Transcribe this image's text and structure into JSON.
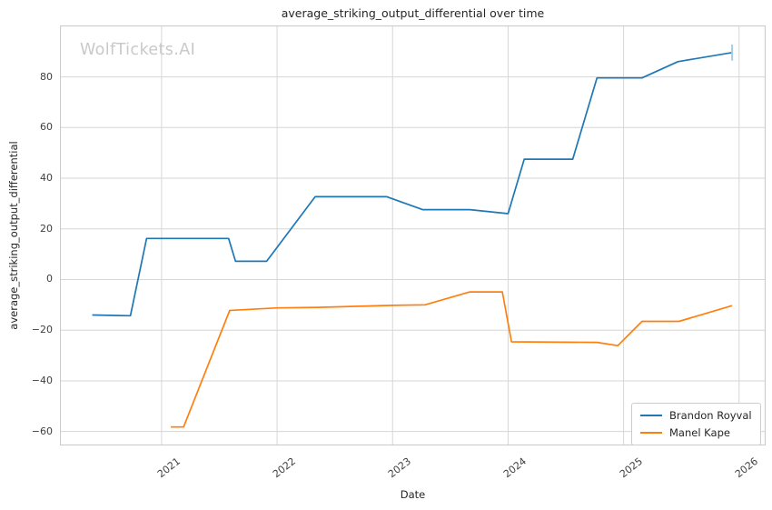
{
  "watermark": "WolfTickets.AI",
  "chart_data": {
    "type": "line",
    "title": "average_striking_output_differential over time",
    "xlabel": "Date",
    "ylabel": "average_striking_output_differential",
    "xlim": [
      2020.12,
      2026.23
    ],
    "ylim": [
      -65.5,
      100.3
    ],
    "grid": true,
    "legend_position": "lower right",
    "xticks": [
      {
        "value": 2021,
        "label": "2021"
      },
      {
        "value": 2022,
        "label": "2022"
      },
      {
        "value": 2023,
        "label": "2023"
      },
      {
        "value": 2024,
        "label": "2024"
      },
      {
        "value": 2025,
        "label": "2025"
      },
      {
        "value": 2026,
        "label": "2026"
      }
    ],
    "yticks": [
      {
        "value": 80,
        "label": "80"
      },
      {
        "value": 60,
        "label": "60"
      },
      {
        "value": 40,
        "label": "40"
      },
      {
        "value": 20,
        "label": "20"
      },
      {
        "value": 0,
        "label": "0"
      },
      {
        "value": -20,
        "label": "−20"
      },
      {
        "value": -40,
        "label": "−40"
      },
      {
        "value": -60,
        "label": "−60"
      }
    ],
    "series": [
      {
        "name": "Brandon Royval",
        "color": "#1f77b4",
        "points": [
          [
            2020.4,
            -14.0
          ],
          [
            2020.73,
            -14.3
          ],
          [
            2020.87,
            16.2
          ],
          [
            2021.58,
            16.2
          ],
          [
            2021.64,
            7.2
          ],
          [
            2021.91,
            7.2
          ],
          [
            2022.33,
            32.7
          ],
          [
            2022.95,
            32.7
          ],
          [
            2023.26,
            27.6
          ],
          [
            2023.67,
            27.6
          ],
          [
            2024.0,
            26.0
          ],
          [
            2024.14,
            47.5
          ],
          [
            2024.56,
            47.5
          ],
          [
            2024.77,
            79.6
          ],
          [
            2025.16,
            79.6
          ],
          [
            2025.47,
            86.0
          ],
          [
            2025.94,
            89.6
          ]
        ],
        "end_marker": {
          "x": 2025.94,
          "y1": 86.4,
          "y2": 92.8,
          "color": "#a9cce3"
        }
      },
      {
        "name": "Manel Kape",
        "color": "#ff7f0e",
        "points": [
          [
            2021.08,
            -58.2
          ],
          [
            2021.19,
            -58.2
          ],
          [
            2021.59,
            -12.2
          ],
          [
            2022.0,
            -11.2
          ],
          [
            2022.35,
            -11.0
          ],
          [
            2023.0,
            -10.2
          ],
          [
            2023.28,
            -10.0
          ],
          [
            2023.67,
            -4.9
          ],
          [
            2023.95,
            -4.9
          ],
          [
            2024.03,
            -24.6
          ],
          [
            2024.77,
            -24.8
          ],
          [
            2024.95,
            -26.1
          ],
          [
            2025.16,
            -16.5
          ],
          [
            2025.48,
            -16.5
          ],
          [
            2025.94,
            -10.3
          ]
        ]
      }
    ],
    "colors": {
      "grid": "#d6d6d6",
      "spine": "#cccccc",
      "background": "#ffffff",
      "text": "#262626",
      "tick_text": "#404040",
      "watermark": "#c9c9c9"
    }
  }
}
